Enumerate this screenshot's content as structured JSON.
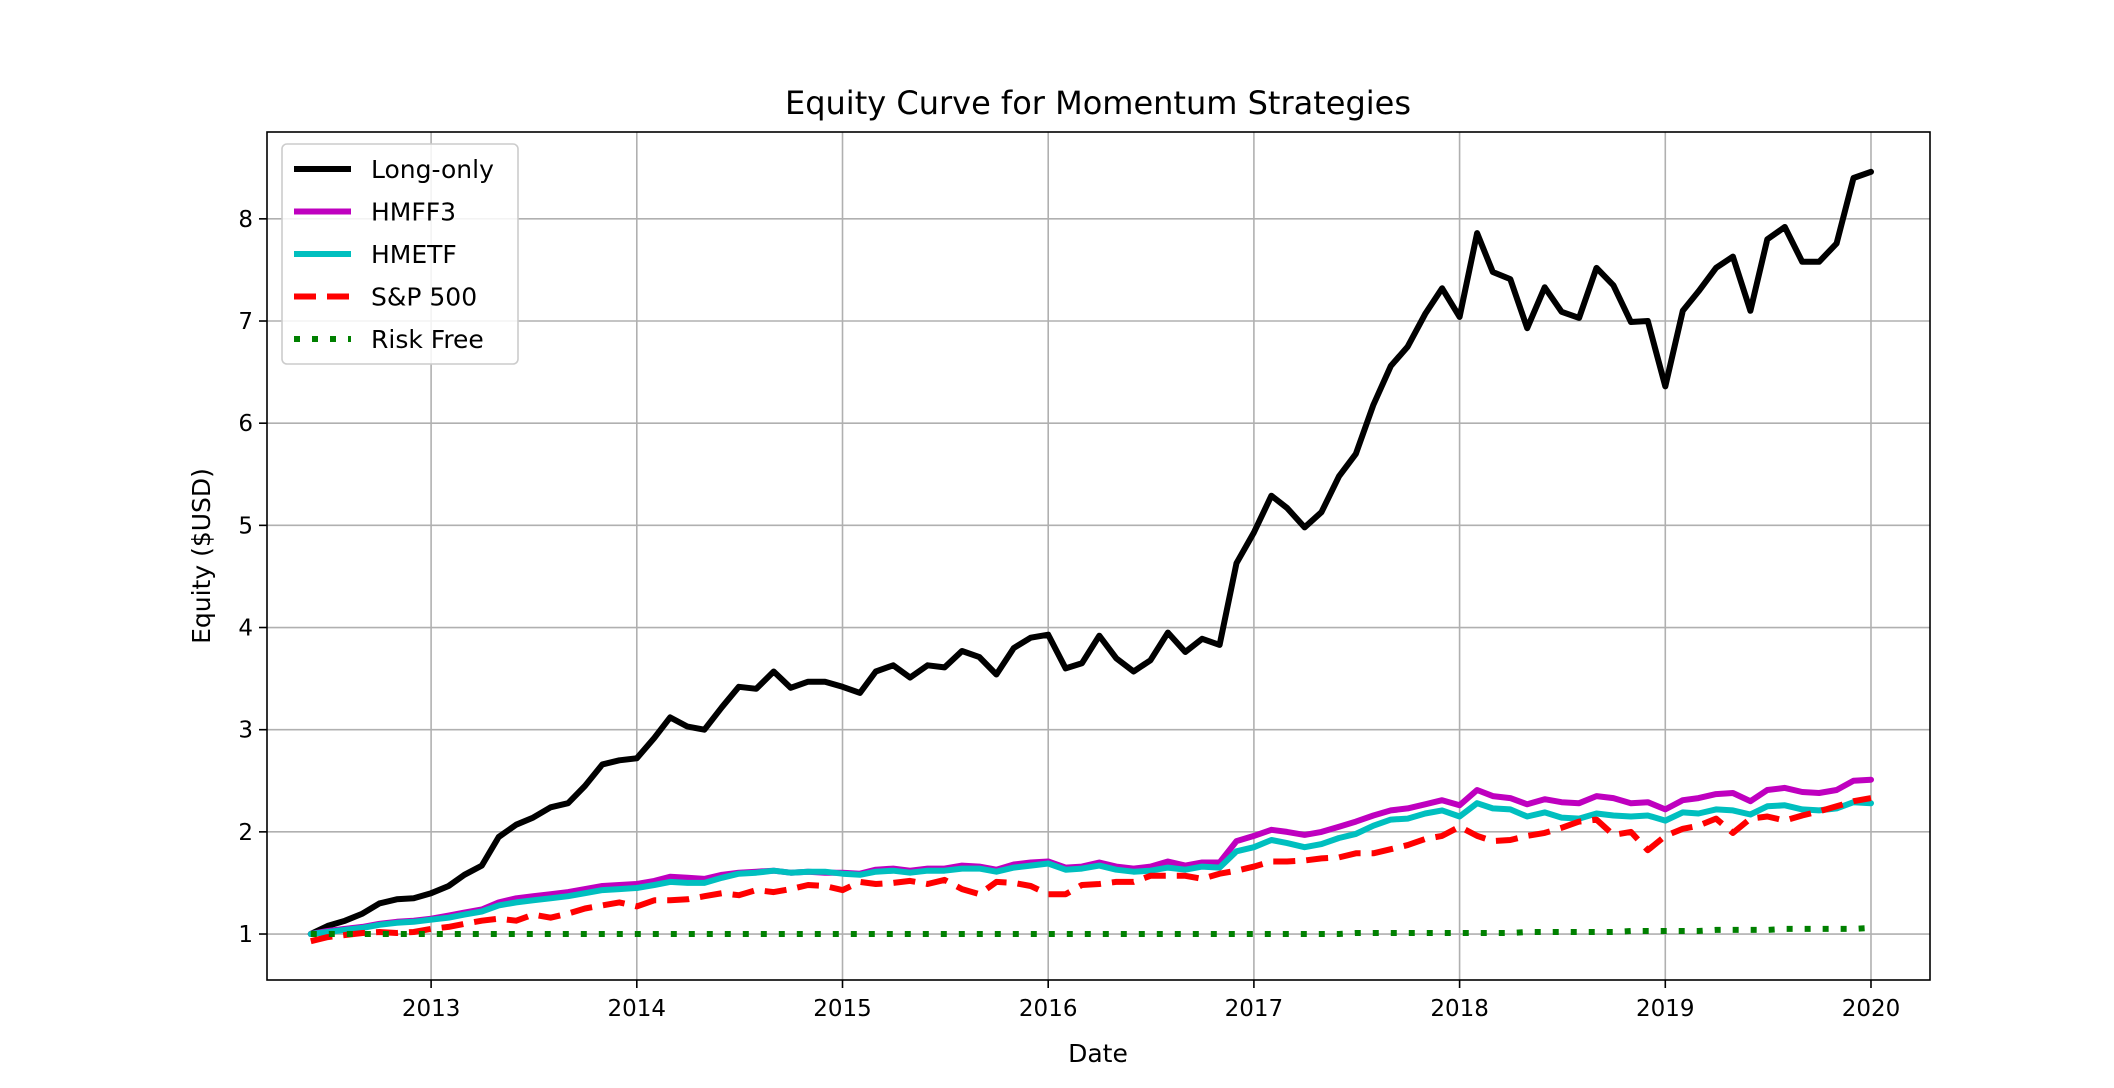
{
  "chart_data": {
    "type": "line",
    "title": "Equity Curve for Momentum Strategies",
    "xlabel": "Date",
    "ylabel": "Equity ($USD)",
    "xlim": [
      "2012-03-15",
      "2020-04-15"
    ],
    "ylim": [
      0.55,
      8.85
    ],
    "x_ticks": [
      "2013",
      "2014",
      "2015",
      "2016",
      "2017",
      "2018",
      "2019",
      "2020"
    ],
    "y_ticks": [
      1,
      2,
      3,
      4,
      5,
      6,
      7,
      8
    ],
    "grid": true,
    "legend_position": "upper-left",
    "x": [
      "2012-06",
      "2012-07",
      "2012-08",
      "2012-09",
      "2012-10",
      "2012-11",
      "2012-12",
      "2013-01",
      "2013-02",
      "2013-03",
      "2013-04",
      "2013-05",
      "2013-06",
      "2013-07",
      "2013-08",
      "2013-09",
      "2013-10",
      "2013-11",
      "2013-12",
      "2014-01",
      "2014-02",
      "2014-03",
      "2014-04",
      "2014-05",
      "2014-06",
      "2014-07",
      "2014-08",
      "2014-09",
      "2014-10",
      "2014-11",
      "2014-12",
      "2015-01",
      "2015-02",
      "2015-03",
      "2015-04",
      "2015-05",
      "2015-06",
      "2015-07",
      "2015-08",
      "2015-09",
      "2015-10",
      "2015-11",
      "2015-12",
      "2016-01",
      "2016-02",
      "2016-03",
      "2016-04",
      "2016-05",
      "2016-06",
      "2016-07",
      "2016-08",
      "2016-09",
      "2016-10",
      "2016-11",
      "2016-12",
      "2017-01",
      "2017-02",
      "2017-03",
      "2017-04",
      "2017-05",
      "2017-06",
      "2017-07",
      "2017-08",
      "2017-09",
      "2017-10",
      "2017-11",
      "2017-12",
      "2018-01",
      "2018-02",
      "2018-03",
      "2018-04",
      "2018-05",
      "2018-06",
      "2018-07",
      "2018-08",
      "2018-09",
      "2018-10",
      "2018-11",
      "2018-12",
      "2019-01",
      "2019-02",
      "2019-03",
      "2019-04",
      "2019-05",
      "2019-06",
      "2019-07",
      "2019-08",
      "2019-09",
      "2019-10",
      "2019-11",
      "2019-12",
      "2020-01"
    ],
    "series": [
      {
        "name": "Long-only",
        "color": "#000000",
        "dash": "solid",
        "values": [
          1.0,
          1.08,
          1.13,
          1.2,
          1.3,
          1.34,
          1.35,
          1.4,
          1.47,
          1.58,
          1.67,
          1.95,
          2.07,
          2.14,
          2.24,
          2.28,
          2.45,
          2.66,
          2.7,
          2.72,
          2.92,
          3.12,
          3.03,
          3.0,
          3.22,
          3.42,
          3.4,
          3.57,
          3.41,
          3.47,
          3.47,
          3.42,
          3.36,
          3.57,
          3.63,
          3.51,
          3.63,
          3.61,
          3.77,
          3.71,
          3.54,
          3.8,
          3.9,
          3.93,
          3.6,
          3.65,
          3.92,
          3.7,
          3.57,
          3.68,
          3.95,
          3.76,
          3.89,
          3.83,
          4.63,
          4.93,
          5.29,
          5.17,
          4.98,
          5.13,
          5.48,
          5.7,
          6.18,
          6.56,
          6.75,
          7.07,
          7.32,
          7.04,
          7.86,
          7.48,
          7.41,
          6.93,
          7.33,
          7.09,
          7.03,
          7.52,
          7.35,
          6.99,
          7.0,
          6.36,
          7.1,
          7.29,
          7.52,
          7.63,
          7.1,
          7.8,
          7.92,
          7.58,
          7.58,
          7.76,
          8.4,
          8.46
        ]
      },
      {
        "name": "HMFF3",
        "color": "#bf00bf",
        "dash": "solid",
        "values": [
          1.0,
          1.03,
          1.05,
          1.07,
          1.1,
          1.12,
          1.13,
          1.15,
          1.18,
          1.21,
          1.24,
          1.31,
          1.35,
          1.37,
          1.39,
          1.41,
          1.44,
          1.47,
          1.48,
          1.49,
          1.52,
          1.56,
          1.55,
          1.54,
          1.58,
          1.6,
          1.61,
          1.62,
          1.6,
          1.61,
          1.6,
          1.6,
          1.59,
          1.63,
          1.64,
          1.62,
          1.64,
          1.64,
          1.67,
          1.66,
          1.63,
          1.68,
          1.7,
          1.71,
          1.65,
          1.66,
          1.7,
          1.66,
          1.64,
          1.66,
          1.71,
          1.67,
          1.7,
          1.7,
          1.91,
          1.96,
          2.02,
          2.0,
          1.97,
          2.0,
          2.05,
          2.1,
          2.16,
          2.21,
          2.23,
          2.27,
          2.31,
          2.26,
          2.41,
          2.35,
          2.33,
          2.27,
          2.32,
          2.29,
          2.28,
          2.35,
          2.33,
          2.28,
          2.29,
          2.22,
          2.31,
          2.33,
          2.37,
          2.38,
          2.3,
          2.41,
          2.43,
          2.39,
          2.38,
          2.41,
          2.5,
          2.51
        ]
      },
      {
        "name": "HMETF",
        "color": "#00bfbf",
        "dash": "solid",
        "values": [
          1.0,
          1.02,
          1.04,
          1.06,
          1.09,
          1.11,
          1.12,
          1.14,
          1.16,
          1.19,
          1.22,
          1.28,
          1.31,
          1.33,
          1.35,
          1.37,
          1.4,
          1.43,
          1.44,
          1.45,
          1.48,
          1.51,
          1.5,
          1.5,
          1.55,
          1.59,
          1.6,
          1.62,
          1.6,
          1.61,
          1.61,
          1.59,
          1.58,
          1.61,
          1.62,
          1.6,
          1.62,
          1.62,
          1.64,
          1.64,
          1.61,
          1.65,
          1.67,
          1.69,
          1.63,
          1.64,
          1.67,
          1.63,
          1.61,
          1.62,
          1.65,
          1.63,
          1.66,
          1.65,
          1.81,
          1.85,
          1.92,
          1.89,
          1.85,
          1.88,
          1.94,
          1.98,
          2.06,
          2.12,
          2.13,
          2.18,
          2.21,
          2.15,
          2.28,
          2.23,
          2.22,
          2.15,
          2.19,
          2.14,
          2.13,
          2.18,
          2.16,
          2.15,
          2.16,
          2.11,
          2.19,
          2.18,
          2.22,
          2.21,
          2.17,
          2.25,
          2.26,
          2.22,
          2.21,
          2.23,
          2.29,
          2.28
        ]
      },
      {
        "name": "S&P 500",
        "color": "#ff0000",
        "dash": "dashed",
        "values": [
          0.93,
          0.97,
          0.99,
          1.01,
          1.02,
          1.01,
          1.02,
          1.05,
          1.07,
          1.1,
          1.13,
          1.15,
          1.13,
          1.19,
          1.16,
          1.2,
          1.25,
          1.28,
          1.31,
          1.27,
          1.33,
          1.33,
          1.34,
          1.37,
          1.4,
          1.38,
          1.43,
          1.41,
          1.44,
          1.48,
          1.47,
          1.43,
          1.51,
          1.49,
          1.5,
          1.52,
          1.49,
          1.53,
          1.44,
          1.39,
          1.51,
          1.5,
          1.47,
          1.39,
          1.39,
          1.48,
          1.49,
          1.51,
          1.51,
          1.57,
          1.57,
          1.57,
          1.54,
          1.59,
          1.62,
          1.66,
          1.71,
          1.71,
          1.72,
          1.74,
          1.75,
          1.79,
          1.79,
          1.83,
          1.87,
          1.93,
          1.96,
          2.05,
          1.96,
          1.91,
          1.92,
          1.96,
          1.99,
          2.04,
          2.1,
          2.12,
          1.97,
          2.0,
          1.82,
          1.96,
          2.03,
          2.06,
          2.13,
          1.99,
          2.13,
          2.15,
          2.11,
          2.16,
          2.2,
          2.25,
          2.3,
          2.33
        ]
      },
      {
        "name": "Risk Free",
        "color": "#008000",
        "dash": "dotted",
        "values": [
          1.0,
          1.0,
          1.0,
          1.0,
          1.0,
          1.0,
          1.0,
          1.0,
          1.0,
          1.0,
          1.0,
          1.0,
          1.0,
          1.0,
          1.0,
          1.0,
          1.0,
          1.0,
          1.0,
          1.0,
          1.0,
          1.0,
          1.0,
          1.0,
          1.0,
          1.0,
          1.0,
          1.0,
          1.0,
          1.0,
          1.0,
          1.0,
          1.0,
          1.0,
          1.0,
          1.0,
          1.0,
          1.0,
          1.0,
          1.0,
          1.0,
          1.0,
          1.0,
          1.0,
          1.0,
          1.0,
          1.0,
          1.0,
          1.0,
          1.0,
          1.0,
          1.0,
          1.0,
          1.0,
          1.0,
          1.0,
          1.0,
          1.0,
          1.0,
          1.0,
          1.0,
          1.01,
          1.01,
          1.01,
          1.01,
          1.01,
          1.01,
          1.01,
          1.01,
          1.01,
          1.01,
          1.02,
          1.02,
          1.02,
          1.02,
          1.02,
          1.02,
          1.03,
          1.03,
          1.03,
          1.03,
          1.03,
          1.04,
          1.04,
          1.04,
          1.04,
          1.05,
          1.05,
          1.05,
          1.05,
          1.05,
          1.06
        ]
      }
    ]
  }
}
